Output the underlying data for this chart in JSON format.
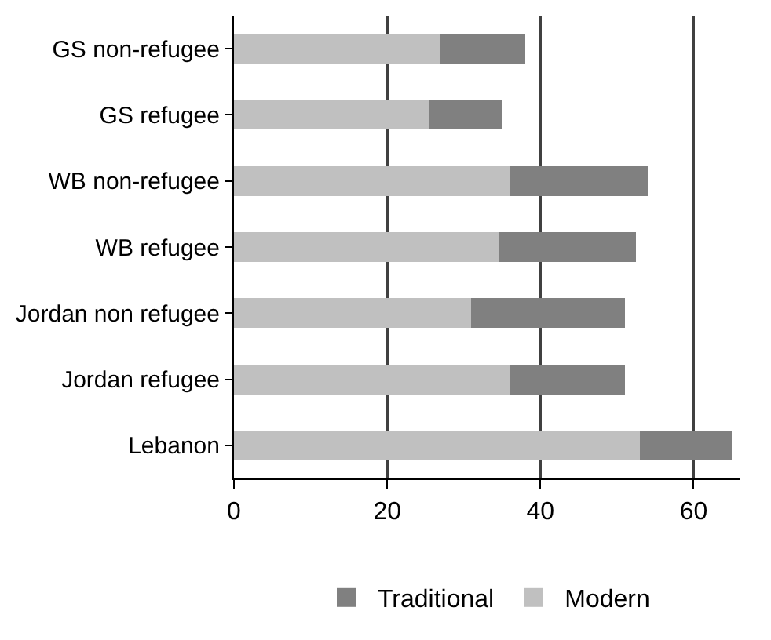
{
  "chart_data": {
    "type": "bar",
    "orientation": "horizontal",
    "stacked": true,
    "categories": [
      "GS non-refugee",
      "GS refugee",
      "WB non-refugee",
      "WB refugee",
      "Jordan non refugee",
      "Jordan refugee",
      "Lebanon"
    ],
    "series": [
      {
        "name": "Modern",
        "color": "#c0c0c0",
        "values": [
          27,
          25.5,
          36,
          34.5,
          31,
          36,
          53
        ]
      },
      {
        "name": "Traditional",
        "color": "#808080",
        "values": [
          11,
          9.5,
          18,
          18,
          20,
          15,
          12
        ]
      }
    ],
    "xlim": [
      0,
      66
    ],
    "xticks": [
      0,
      20,
      40,
      60
    ],
    "grid": "x",
    "legend": "bottom"
  }
}
